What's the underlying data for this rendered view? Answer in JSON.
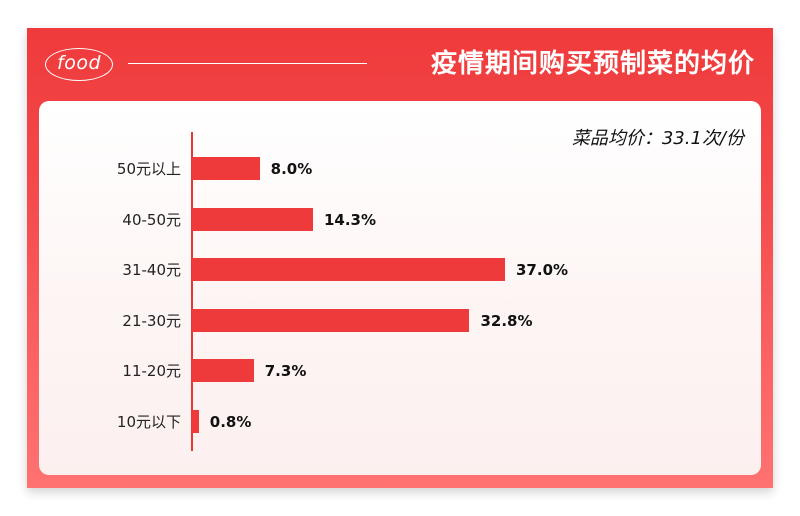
{
  "header": {
    "logo_text": "food",
    "title": "疫情期间购买预制菜的均价"
  },
  "summary": {
    "average_label": "菜品均价：33.1次/份"
  },
  "colors": {
    "accent": "#ef3a3b",
    "gradient_bottom": "#ff7272",
    "panel": "#fdf5f4"
  },
  "chart_data": {
    "type": "bar",
    "orientation": "horizontal",
    "title": "疫情期间购买预制菜的均价",
    "subtitle": "菜品均价：33.1次/份",
    "categories": [
      "50元以上",
      "40-50元",
      "31-40元",
      "21-30元",
      "11-20元",
      "10元以下"
    ],
    "values": [
      8.0,
      14.3,
      37.0,
      32.8,
      7.3,
      0.8
    ],
    "value_labels": [
      "8.0%",
      "14.3%",
      "37.0%",
      "32.8%",
      "7.3%",
      "0.8%"
    ],
    "unit": "%",
    "xlabel": "",
    "ylabel": "",
    "grid": false,
    "legend": "none"
  }
}
